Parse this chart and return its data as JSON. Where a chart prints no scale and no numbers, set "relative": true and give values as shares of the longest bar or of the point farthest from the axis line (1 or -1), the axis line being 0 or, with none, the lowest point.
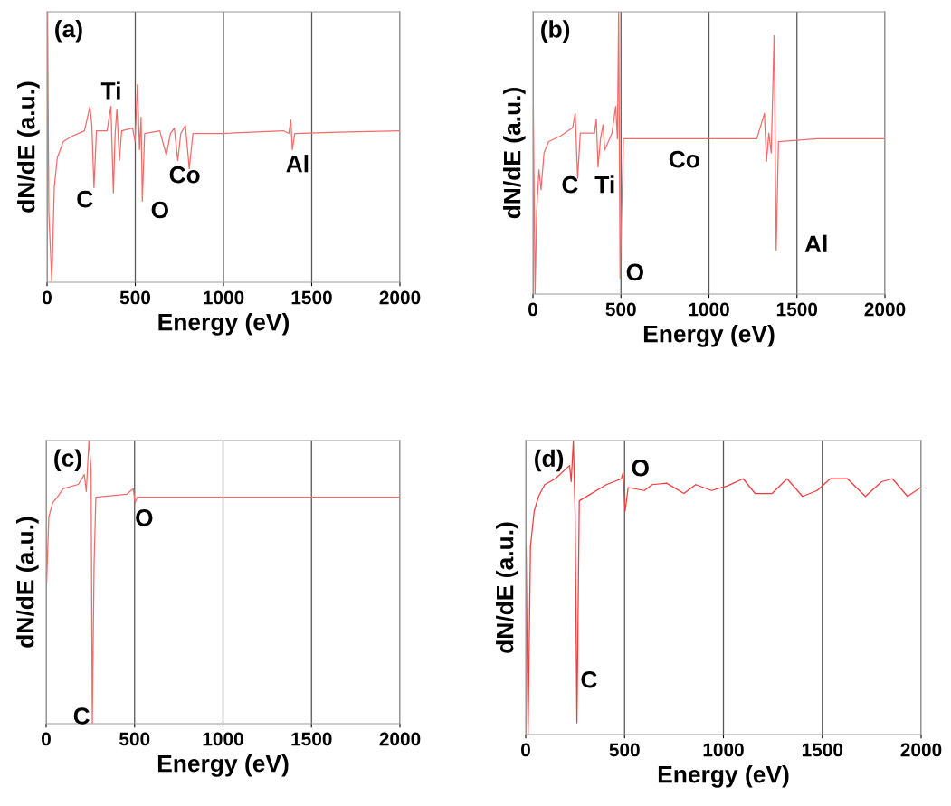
{
  "chart_data": [
    {
      "type": "line",
      "relative": true,
      "xlabel": "Energy (eV)",
      "ylabel": "dN/dE (a.u.)",
      "xlim": [
        0,
        2000
      ],
      "xticks": [
        0,
        500,
        1000,
        1500,
        2000
      ],
      "grid": "x",
      "series": [
        {
          "color": "#f26b6b",
          "x": [
            3,
            10,
            27,
            41,
            58,
            92,
            143,
            212,
            243,
            254,
            266,
            280,
            340,
            362,
            376,
            386,
            396,
            410,
            423,
            485,
            499,
            512,
            524,
            533,
            540,
            553,
            639,
            676,
            699,
            721,
            741,
            758,
            784,
            806,
            827,
            997,
            1339,
            1370,
            1382,
            1390,
            1404,
            1647,
            1997
          ],
          "values": [
            1.0,
            0.26,
            0.0,
            0.35,
            0.46,
            0.52,
            0.54,
            0.56,
            0.65,
            0.58,
            0.35,
            0.56,
            0.56,
            0.65,
            0.33,
            0.55,
            0.64,
            0.45,
            0.56,
            0.57,
            0.52,
            0.73,
            0.49,
            0.61,
            0.3,
            0.55,
            0.56,
            0.47,
            0.55,
            0.57,
            0.45,
            0.55,
            0.58,
            0.42,
            0.55,
            0.55,
            0.56,
            0.55,
            0.6,
            0.49,
            0.55,
            0.555,
            0.56
          ]
        }
      ],
      "annotations": [
        "(a)",
        "C",
        "Ti",
        "O",
        "Co",
        "Al"
      ]
    },
    {
      "type": "line",
      "relative": true,
      "xlabel": "Energy (eV)",
      "ylabel": "dN/dE (a.u.)",
      "xlim": [
        0,
        2000
      ],
      "xticks": [
        0,
        500,
        1000,
        1500,
        2000
      ],
      "grid": "x",
      "series": [
        {
          "color": "#f26b6b",
          "x": [
            2,
            12,
            21,
            34,
            46,
            63,
            89,
            158,
            226,
            240,
            254,
            269,
            350,
            360,
            370,
            384,
            398,
            408,
            449,
            470,
            480,
            487,
            495,
            514,
            758,
            998,
            1272,
            1315,
            1327,
            1340,
            1354,
            1370,
            1382,
            1395,
            1615,
            1995
          ],
          "values": [
            0.665,
            0.0,
            0.29,
            0.44,
            0.37,
            0.5,
            0.54,
            0.56,
            0.59,
            0.64,
            0.41,
            0.57,
            0.57,
            0.62,
            0.45,
            0.55,
            0.6,
            0.51,
            0.57,
            0.665,
            0.55,
            1.0,
            0.055,
            0.55,
            0.55,
            0.55,
            0.55,
            0.64,
            0.47,
            0.57,
            0.5,
            0.915,
            0.155,
            0.54,
            0.55,
            0.55
          ]
        }
      ],
      "annotations": [
        "(b)",
        "C",
        "Ti",
        "O",
        "Co",
        "Al"
      ]
    },
    {
      "type": "line",
      "relative": true,
      "xlabel": "Energy (eV)",
      "ylabel": "dN/dE (a.u.)",
      "xlim": [
        0,
        2000
      ],
      "xticks": [
        0,
        500,
        1000,
        1500,
        2000
      ],
      "grid": "x",
      "series": [
        {
          "color": "#f26b6b",
          "x": [
            3,
            15,
            37,
            63,
            97,
            182,
            216,
            227,
            242,
            254,
            261,
            271,
            281,
            455,
            492,
            503,
            515,
            966,
            1477,
            1997
          ],
          "values": [
            0.5,
            0.73,
            0.78,
            0.8,
            0.83,
            0.845,
            0.88,
            0.82,
            1.0,
            0.9,
            0.0,
            0.56,
            0.8,
            0.81,
            0.83,
            0.78,
            0.8,
            0.8,
            0.8,
            0.8
          ]
        }
      ],
      "annotations": [
        "(c)",
        "O",
        "C"
      ]
    },
    {
      "type": "line",
      "relative": true,
      "xlabel": "Energy (eV)",
      "ylabel": "dN/dE (a.u.)",
      "xlim": [
        0,
        2000
      ],
      "xticks": [
        0,
        500,
        1000,
        1500,
        2000
      ],
      "grid": "x",
      "series": [
        {
          "color": "#f03c3c",
          "x": [
            2,
            12,
            24,
            43,
            65,
            96,
            149,
            222,
            230,
            241,
            250,
            259,
            271,
            408,
            484,
            492,
            503,
            518,
            600,
            640,
            713,
            800,
            860,
            940,
            1017,
            1100,
            1160,
            1246,
            1322,
            1400,
            1474,
            1540,
            1627,
            1718,
            1800,
            1855,
            1931,
            1997
          ],
          "values": [
            0.64,
            0.0,
            0.64,
            0.76,
            0.81,
            0.85,
            0.87,
            0.915,
            0.86,
            1.0,
            0.75,
            0.04,
            0.795,
            0.85,
            0.87,
            0.89,
            0.76,
            0.84,
            0.83,
            0.85,
            0.855,
            0.82,
            0.85,
            0.83,
            0.845,
            0.87,
            0.82,
            0.82,
            0.87,
            0.81,
            0.83,
            0.87,
            0.87,
            0.81,
            0.86,
            0.87,
            0.81,
            0.84
          ]
        }
      ],
      "annotations": [
        "(d)",
        "O",
        "C"
      ]
    }
  ]
}
